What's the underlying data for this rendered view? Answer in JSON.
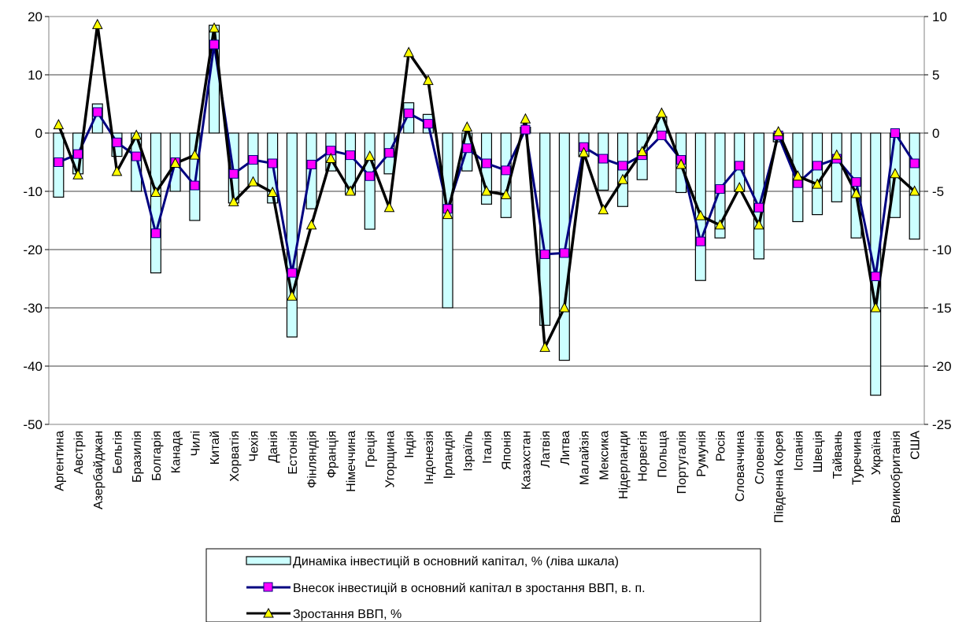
{
  "chart_data": {
    "type": "bar+line",
    "title": "",
    "xlabel": "",
    "ylabel": "",
    "y_left": {
      "min": -50,
      "max": 20,
      "step": 10,
      "ticks": [
        "20",
        "10",
        "0",
        "-10",
        "-20",
        "-30",
        "-40",
        "-50"
      ]
    },
    "y_right": {
      "min": -25,
      "max": 10,
      "step": 5,
      "ticks": [
        "10",
        "5",
        "0",
        "-5",
        "-10",
        "-15",
        "-20",
        "-25"
      ]
    },
    "grid": "horizontal",
    "legend_position": "bottom-center",
    "colors": {
      "bar_fill": "#ccffff",
      "bar_stroke": "#000000",
      "contribution": "#000080",
      "contribution_marker": "#ff00ff",
      "gdp": "#000000",
      "gdp_marker": "#ffff00"
    },
    "categories": [
      "Аргентина",
      "Австрія",
      "Азербайджан",
      "Бельгія",
      "Бразилія",
      "Болгарія",
      "Канада",
      "Чилі",
      "Китай",
      "Хорватія",
      "Чехія",
      "Данія",
      "Естонія",
      "Фінляндія",
      "Франція",
      "Німеччина",
      "Греція",
      "Угорщина",
      "Індія",
      "Індонезія",
      "Ірландія",
      "Ізраїль",
      "Італія",
      "Японія",
      "Казахстан",
      "Латвія",
      "Литва",
      "Малайзія",
      "Мексика",
      "Нідерланди",
      "Норвегія",
      "Польща",
      "Португалія",
      "Румунія",
      "Росія",
      "Словаччина",
      "Словенія",
      "Південна Корея",
      "Іспанія",
      "Швеція",
      "Тайвань",
      "Туречина",
      "Україна",
      "Великобританія",
      "США"
    ],
    "series": [
      {
        "name": "Динаміка інвестицій в основний капітал, % (ліва шкала)",
        "type": "bar",
        "axis": "left",
        "values": [
          -11,
          -7,
          5,
          -4,
          -10,
          -24,
          -10,
          -15,
          18.5,
          -12,
          -9,
          -12,
          -35,
          -13,
          -6.5,
          -10.5,
          -16.5,
          -7,
          5.2,
          3.2,
          -30,
          -6.5,
          -12.2,
          -14.5,
          1,
          -33,
          -39,
          -4,
          -9.8,
          -12.6,
          -8,
          2.8,
          -10.2,
          -25.3,
          -18,
          -10,
          -21.6,
          -1.5,
          -15.2,
          -14,
          -11.8,
          -18,
          -45,
          -14.5,
          -18.2
        ]
      },
      {
        "name": "Внесок інвестицій в основний капітал в зростання ВВП, в. п.",
        "type": "line",
        "axis": "right",
        "values": [
          -2.5,
          -1.8,
          1.8,
          -0.8,
          -2,
          -8.6,
          -2.5,
          -4.5,
          7.6,
          -3.5,
          -2.3,
          -2.6,
          -12,
          -2.7,
          -1.5,
          -1.9,
          -3.7,
          -1.7,
          1.7,
          0.8,
          -6.5,
          -1.3,
          -2.6,
          -3.2,
          0.3,
          -10.4,
          -10.3,
          -1.2,
          -2.2,
          -2.8,
          -1.9,
          -0.2,
          -2.3,
          -9.3,
          -4.8,
          -2.8,
          -6.4,
          -0.2,
          -4.3,
          -2.8,
          -2.2,
          -4.2,
          -12.3,
          0,
          -2.6
        ]
      },
      {
        "name": "Зростання ВВП, %",
        "type": "line",
        "axis": "right",
        "values": [
          0.7,
          -3.6,
          9.3,
          -3.3,
          -0.2,
          -5.1,
          -2.6,
          -1.9,
          9,
          -5.9,
          -4.2,
          -5.1,
          -14,
          -7.9,
          -2.2,
          -5,
          -2,
          -6.4,
          6.9,
          4.5,
          -7,
          0.5,
          -5,
          -5.3,
          1.2,
          -18.4,
          -15,
          -1.7,
          -6.6,
          -4,
          -1.6,
          1.7,
          -2.7,
          -7.1,
          -7.9,
          -4.7,
          -7.9,
          0.1,
          -3.7,
          -4.4,
          -1.9,
          -5.2,
          -15,
          -3.5,
          -5
        ]
      }
    ]
  }
}
